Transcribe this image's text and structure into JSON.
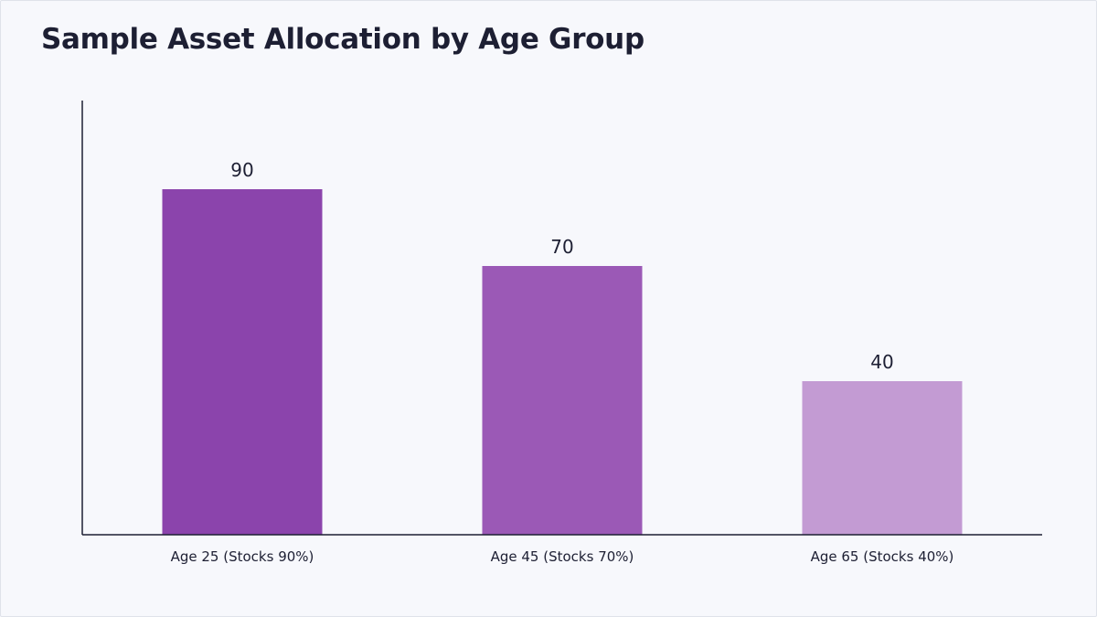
{
  "chart_data": {
    "type": "bar",
    "title": "Sample Asset Allocation by Age Group",
    "categories": [
      "Age 25 (Stocks 90%)",
      "Age 45 (Stocks 70%)",
      "Age 65 (Stocks 40%)"
    ],
    "values": [
      90,
      70,
      40
    ],
    "bar_colors": [
      "#8b44ac",
      "#9b59b6",
      "#c39bd3"
    ],
    "ylim": [
      0,
      100
    ],
    "xlabel": "",
    "ylabel": "",
    "grid": false,
    "legend": "none",
    "data_labels": true
  },
  "colors": {
    "background": "#f7f8fc",
    "text": "#1d1f33",
    "axis": "#1d1f33"
  }
}
